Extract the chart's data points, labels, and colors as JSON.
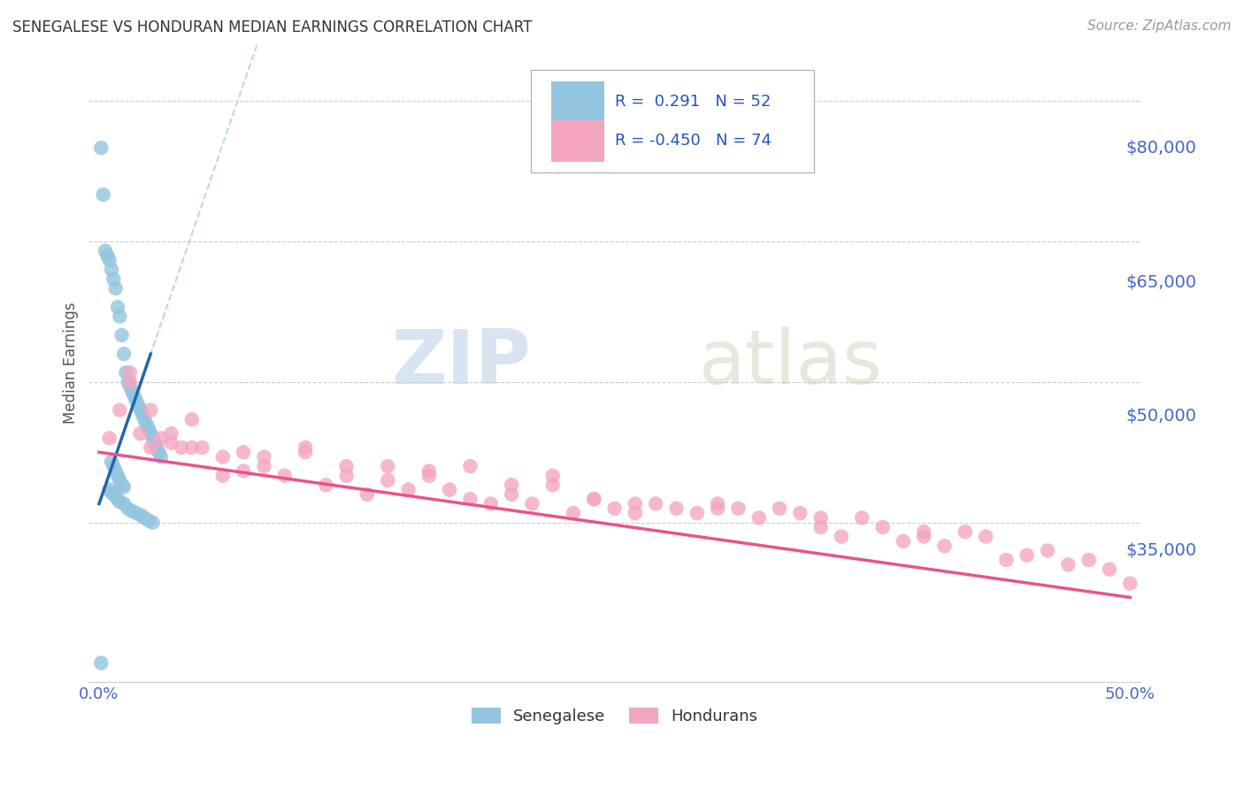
{
  "title": "SENEGALESE VS HONDURAN MEDIAN EARNINGS CORRELATION CHART",
  "source": "Source: ZipAtlas.com",
  "ylabel": "Median Earnings",
  "right_yticks": [
    35000,
    50000,
    65000,
    80000
  ],
  "right_ytick_labels": [
    "$35,000",
    "$50,000",
    "$65,000",
    "$80,000"
  ],
  "watermark_zip": "ZIP",
  "watermark_atlas": "atlas",
  "legend_row1": "R =  0.291   N = 52",
  "legend_row2": "R = -0.450   N = 74",
  "blue_color": "#92c5de",
  "pink_color": "#f4a6c0",
  "blue_line_color": "#2166ac",
  "pink_line_color": "#e8538a",
  "blue_dash_color": "#b8d8ee",
  "xlim_min": -0.005,
  "xlim_max": 0.505,
  "ylim_min": 18000,
  "ylim_max": 86000,
  "senegalese_x": [
    0.001,
    0.002,
    0.003,
    0.004,
    0.005,
    0.006,
    0.007,
    0.008,
    0.009,
    0.01,
    0.011,
    0.012,
    0.013,
    0.014,
    0.015,
    0.016,
    0.017,
    0.018,
    0.019,
    0.02,
    0.021,
    0.022,
    0.023,
    0.024,
    0.025,
    0.026,
    0.027,
    0.028,
    0.029,
    0.03,
    0.006,
    0.007,
    0.008,
    0.009,
    0.01,
    0.011,
    0.012,
    0.005,
    0.006,
    0.007,
    0.008,
    0.009,
    0.01,
    0.012,
    0.014,
    0.016,
    0.018,
    0.02,
    0.022,
    0.024,
    0.026,
    0.001
  ],
  "senegalese_y": [
    75000,
    70000,
    64000,
    63500,
    63000,
    62000,
    61000,
    60000,
    58000,
    57000,
    55000,
    53000,
    51000,
    50000,
    49500,
    49000,
    48500,
    48000,
    47500,
    47000,
    46500,
    46000,
    45500,
    45000,
    44500,
    44000,
    43500,
    43000,
    42500,
    42000,
    41500,
    41000,
    40500,
    40000,
    39500,
    39000,
    38800,
    38500,
    38200,
    38000,
    37800,
    37500,
    37200,
    37000,
    36500,
    36200,
    36000,
    35800,
    35500,
    35200,
    35000,
    20000
  ],
  "honduran_x": [
    0.005,
    0.01,
    0.015,
    0.02,
    0.025,
    0.03,
    0.035,
    0.04,
    0.045,
    0.05,
    0.06,
    0.07,
    0.08,
    0.09,
    0.1,
    0.11,
    0.12,
    0.13,
    0.14,
    0.15,
    0.16,
    0.17,
    0.18,
    0.19,
    0.2,
    0.21,
    0.22,
    0.23,
    0.24,
    0.25,
    0.26,
    0.27,
    0.28,
    0.29,
    0.3,
    0.31,
    0.32,
    0.33,
    0.34,
    0.35,
    0.36,
    0.37,
    0.38,
    0.39,
    0.4,
    0.41,
    0.42,
    0.43,
    0.44,
    0.45,
    0.46,
    0.47,
    0.48,
    0.49,
    0.5,
    0.06,
    0.07,
    0.08,
    0.1,
    0.12,
    0.14,
    0.16,
    0.18,
    0.2,
    0.22,
    0.24,
    0.26,
    0.3,
    0.35,
    0.4,
    0.015,
    0.025,
    0.035,
    0.045
  ],
  "honduran_y": [
    44000,
    47000,
    50000,
    44500,
    43000,
    44000,
    43500,
    43000,
    46000,
    43000,
    42000,
    42500,
    41000,
    40000,
    43000,
    39000,
    41000,
    38000,
    39500,
    38500,
    40000,
    38500,
    37500,
    37000,
    39000,
    37000,
    39000,
    36000,
    37500,
    36500,
    36000,
    37000,
    36500,
    36000,
    37000,
    36500,
    35500,
    36500,
    36000,
    34500,
    33500,
    35500,
    34500,
    33000,
    34000,
    32500,
    34000,
    33500,
    31000,
    31500,
    32000,
    30500,
    31000,
    30000,
    28500,
    40000,
    40500,
    42000,
    42500,
    40000,
    41000,
    40500,
    41000,
    38000,
    40000,
    37500,
    37000,
    36500,
    35500,
    33500,
    51000,
    47000,
    44500,
    43000
  ]
}
